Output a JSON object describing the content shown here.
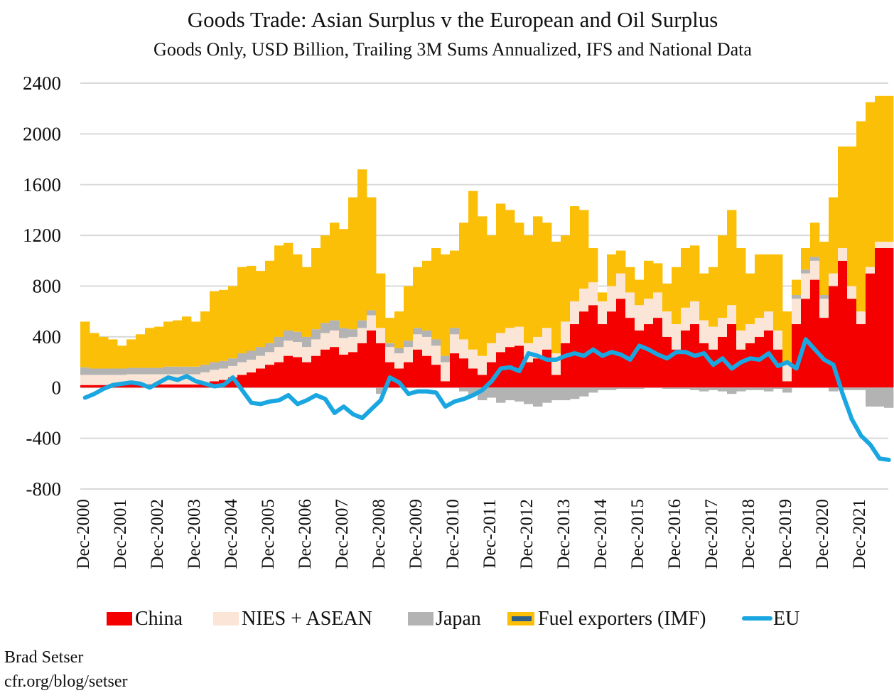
{
  "chart_data": {
    "type": "bar",
    "stacked": true,
    "title": "Goods Trade: Asian Surplus v the European and Oil Surplus",
    "subtitle": "Goods Only, USD Billion, Trailing 3M Sums Annualized, IFS and National Data",
    "xlabel": "",
    "ylabel": "",
    "ylim": [
      -800,
      2400
    ],
    "yticks": [
      "2400",
      "2000",
      "1600",
      "1200",
      "800",
      "400",
      "0",
      "-400",
      "-800"
    ],
    "ytick_values": [
      2400,
      2000,
      1600,
      1200,
      800,
      400,
      0,
      -400,
      -800
    ],
    "xtick_labels": [
      "Dec-2000",
      "Dec-2001",
      "Dec-2002",
      "Dec-2003",
      "Dec-2004",
      "Dec-2005",
      "Dec-2006",
      "Dec-2007",
      "Dec-2008",
      "Dec-2009",
      "Dec-2010",
      "Dec-2011",
      "Dec-2012",
      "Dec-2013",
      "Dec-2014",
      "Dec-2015",
      "Dec-2016",
      "Dec-2017",
      "Dec-2018",
      "Dec-2019",
      "Dec-2020",
      "Dec-2021"
    ],
    "x_start": "2000-12",
    "x_step": "quarter",
    "grid": true,
    "legend_position": "bottom",
    "series": [
      {
        "name": "China",
        "type": "bar",
        "color": "#f40000",
        "values": [
          20,
          20,
          20,
          20,
          20,
          25,
          25,
          25,
          25,
          25,
          25,
          25,
          25,
          30,
          50,
          60,
          80,
          100,
          120,
          150,
          180,
          200,
          250,
          240,
          200,
          250,
          300,
          320,
          260,
          280,
          350,
          450,
          350,
          200,
          150,
          200,
          300,
          250,
          180,
          50,
          270,
          230,
          150,
          100,
          200,
          280,
          320,
          330,
          200,
          230,
          300,
          100,
          350,
          500,
          600,
          650,
          500,
          600,
          700,
          550,
          450,
          500,
          550,
          400,
          300,
          450,
          500,
          350,
          300,
          400,
          500,
          300,
          350,
          400,
          450,
          300,
          50,
          500,
          700,
          850,
          550,
          800,
          1000,
          700,
          500,
          900,
          1100,
          1100
        ]
      },
      {
        "name": "NIES + ASEAN",
        "type": "bar",
        "color": "#fbe5d6",
        "values": [
          80,
          80,
          80,
          80,
          80,
          80,
          80,
          80,
          80,
          80,
          80,
          80,
          80,
          90,
          90,
          90,
          90,
          100,
          100,
          100,
          100,
          120,
          120,
          120,
          120,
          130,
          130,
          130,
          130,
          120,
          120,
          120,
          120,
          120,
          120,
          120,
          120,
          150,
          150,
          150,
          150,
          150,
          150,
          150,
          150,
          150,
          150,
          150,
          150,
          170,
          170,
          170,
          170,
          180,
          180,
          180,
          180,
          200,
          200,
          200,
          200,
          200,
          200,
          200,
          200,
          180,
          180,
          180,
          180,
          150,
          150,
          150,
          150,
          150,
          150,
          150,
          150,
          200,
          200,
          150,
          150,
          100,
          100,
          100,
          100,
          50,
          50,
          50
        ]
      },
      {
        "name": "Japan",
        "type": "bar",
        "color": "#b3b3b3",
        "values": [
          60,
          50,
          50,
          50,
          50,
          50,
          50,
          50,
          50,
          60,
          60,
          60,
          60,
          60,
          60,
          60,
          60,
          70,
          70,
          70,
          70,
          80,
          80,
          80,
          80,
          80,
          80,
          80,
          80,
          60,
          60,
          40,
          -50,
          30,
          40,
          50,
          50,
          50,
          50,
          50,
          50,
          -30,
          -60,
          -100,
          -80,
          -120,
          -100,
          -110,
          -130,
          -150,
          -120,
          -100,
          -100,
          -90,
          -70,
          -40,
          -20,
          -20,
          -10,
          -10,
          -10,
          0,
          0,
          -10,
          -10,
          -10,
          -20,
          -30,
          -20,
          -30,
          -50,
          -30,
          -20,
          -20,
          -30,
          -10,
          -40,
          30,
          30,
          30,
          30,
          -30,
          -20,
          -20,
          -20,
          -150,
          -150,
          -160
        ]
      },
      {
        "name": "Fuel exporters (IMF)",
        "type": "bar",
        "color": "#fbbf07",
        "values": [
          360,
          280,
          250,
          230,
          180,
          225,
          265,
          315,
          325,
          355,
          365,
          395,
          355,
          420,
          560,
          560,
          570,
          680,
          670,
          600,
          650,
          720,
          690,
          610,
          550,
          640,
          690,
          770,
          780,
          1040,
          1190,
          890,
          430,
          200,
          290,
          430,
          480,
          550,
          720,
          800,
          610,
          920,
          1250,
          1100,
          850,
          1020,
          930,
          820,
          850,
          950,
          830,
          880,
          680,
          750,
          620,
          270,
          70,
          250,
          180,
          200,
          200,
          300,
          230,
          220,
          450,
          470,
          440,
          370,
          470,
          650,
          750,
          650,
          400,
          500,
          450,
          600,
          400,
          120,
          170,
          270,
          420,
          600,
          800,
          1100,
          1500,
          1300,
          1150,
          1150
        ]
      },
      {
        "name": "EU",
        "type": "line",
        "color": "#1aa6e0",
        "values": [
          -80,
          -50,
          -10,
          20,
          30,
          40,
          30,
          0,
          40,
          80,
          60,
          90,
          50,
          30,
          10,
          20,
          80,
          -20,
          -120,
          -130,
          -110,
          -100,
          -60,
          -130,
          -100,
          -60,
          -90,
          -200,
          -150,
          -210,
          -240,
          -170,
          -100,
          80,
          40,
          -50,
          -30,
          -30,
          -40,
          -150,
          -110,
          -90,
          -60,
          -20,
          50,
          150,
          160,
          130,
          270,
          250,
          220,
          220,
          250,
          270,
          250,
          300,
          250,
          280,
          260,
          220,
          330,
          300,
          260,
          230,
          280,
          280,
          250,
          270,
          180,
          230,
          150,
          200,
          230,
          220,
          270,
          170,
          200,
          150,
          380,
          300,
          220,
          180,
          -50,
          -250,
          -380,
          -450,
          -560,
          -570
        ]
      }
    ]
  },
  "legend": {
    "china": "China",
    "nies": "NIES + ASEAN",
    "japan": "Japan",
    "fuel": "Fuel exporters (IMF)",
    "eu": "EU",
    "fuel_inner_color": "#2e5f8a"
  },
  "credit": {
    "author": "Brad Setser",
    "url": "cfr.org/blog/setser"
  }
}
